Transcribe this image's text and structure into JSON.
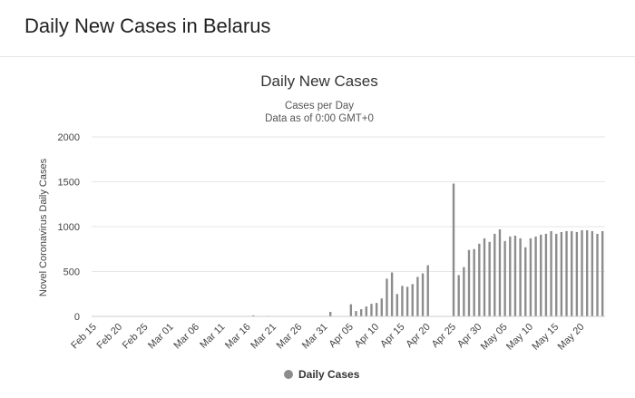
{
  "page": {
    "title": "Daily New Cases in Belarus"
  },
  "chart_data": {
    "type": "bar",
    "title": "Daily New Cases",
    "subtitle_lines": [
      "Cases per Day",
      "Data as of 0:00 GMT+0"
    ],
    "ylabel": "Novel Coronavirus Daily Cases",
    "xlabel": "",
    "ylim": [
      0,
      2000
    ],
    "yticks": [
      0,
      500,
      1000,
      1500,
      2000
    ],
    "grid": true,
    "legend_position": "bottom-center",
    "color": "#8c8c8c",
    "x_tick_labels": [
      "Feb 15",
      "Feb 20",
      "Feb 25",
      "Mar 01",
      "Mar 06",
      "Mar 11",
      "Mar 16",
      "Mar 21",
      "Mar 26",
      "Mar 31",
      "Apr 05",
      "Apr 10",
      "Apr 15",
      "Apr 20",
      "Apr 25",
      "Apr 30",
      "May 05",
      "May 10",
      "May 15",
      "May 20"
    ],
    "categories": [
      "Feb 15",
      "Feb 16",
      "Feb 17",
      "Feb 18",
      "Feb 19",
      "Feb 20",
      "Feb 21",
      "Feb 22",
      "Feb 23",
      "Feb 24",
      "Feb 25",
      "Feb 26",
      "Feb 27",
      "Feb 28",
      "Feb 29",
      "Mar 01",
      "Mar 02",
      "Mar 03",
      "Mar 04",
      "Mar 05",
      "Mar 06",
      "Mar 07",
      "Mar 08",
      "Mar 09",
      "Mar 10",
      "Mar 11",
      "Mar 12",
      "Mar 13",
      "Mar 14",
      "Mar 15",
      "Mar 16",
      "Mar 17",
      "Mar 18",
      "Mar 19",
      "Mar 20",
      "Mar 21",
      "Mar 22",
      "Mar 23",
      "Mar 24",
      "Mar 25",
      "Mar 26",
      "Mar 27",
      "Mar 28",
      "Mar 29",
      "Mar 30",
      "Mar 31",
      "Apr 01",
      "Apr 02",
      "Apr 03",
      "Apr 04",
      "Apr 05",
      "Apr 06",
      "Apr 07",
      "Apr 08",
      "Apr 09",
      "Apr 10",
      "Apr 11",
      "Apr 12",
      "Apr 13",
      "Apr 14",
      "Apr 15",
      "Apr 16",
      "Apr 17",
      "Apr 18",
      "Apr 19",
      "Apr 20",
      "Apr 21",
      "Apr 22",
      "Apr 23",
      "Apr 24",
      "Apr 25",
      "Apr 26",
      "Apr 27",
      "Apr 28",
      "Apr 29",
      "Apr 30",
      "May 01",
      "May 02",
      "May 03",
      "May 04",
      "May 05",
      "May 06",
      "May 07",
      "May 08",
      "May 09",
      "May 10",
      "May 11",
      "May 12",
      "May 13",
      "May 14",
      "May 15",
      "May 16",
      "May 17",
      "May 18",
      "May 19",
      "May 20",
      "May 21",
      "May 22",
      "May 23",
      "May 24"
    ],
    "series": [
      {
        "name": "Daily Cases",
        "values": [
          0,
          0,
          0,
          0,
          0,
          0,
          0,
          0,
          0,
          0,
          0,
          0,
          0,
          0,
          0,
          0,
          0,
          0,
          0,
          0,
          0,
          0,
          0,
          0,
          0,
          0,
          0,
          0,
          0,
          0,
          0,
          12,
          0,
          0,
          6,
          0,
          0,
          0,
          0,
          0,
          0,
          0,
          0,
          0,
          0,
          0,
          50,
          0,
          0,
          0,
          135,
          60,
          80,
          110,
          140,
          150,
          200,
          420,
          490,
          250,
          340,
          330,
          360,
          440,
          480,
          570,
          0,
          0,
          0,
          0,
          1480,
          460,
          550,
          740,
          750,
          810,
          870,
          830,
          920,
          970,
          840,
          890,
          900,
          870,
          770,
          870,
          890,
          910,
          920,
          950,
          920,
          940,
          950,
          950,
          940,
          960,
          960,
          950,
          920,
          950
        ]
      }
    ]
  }
}
